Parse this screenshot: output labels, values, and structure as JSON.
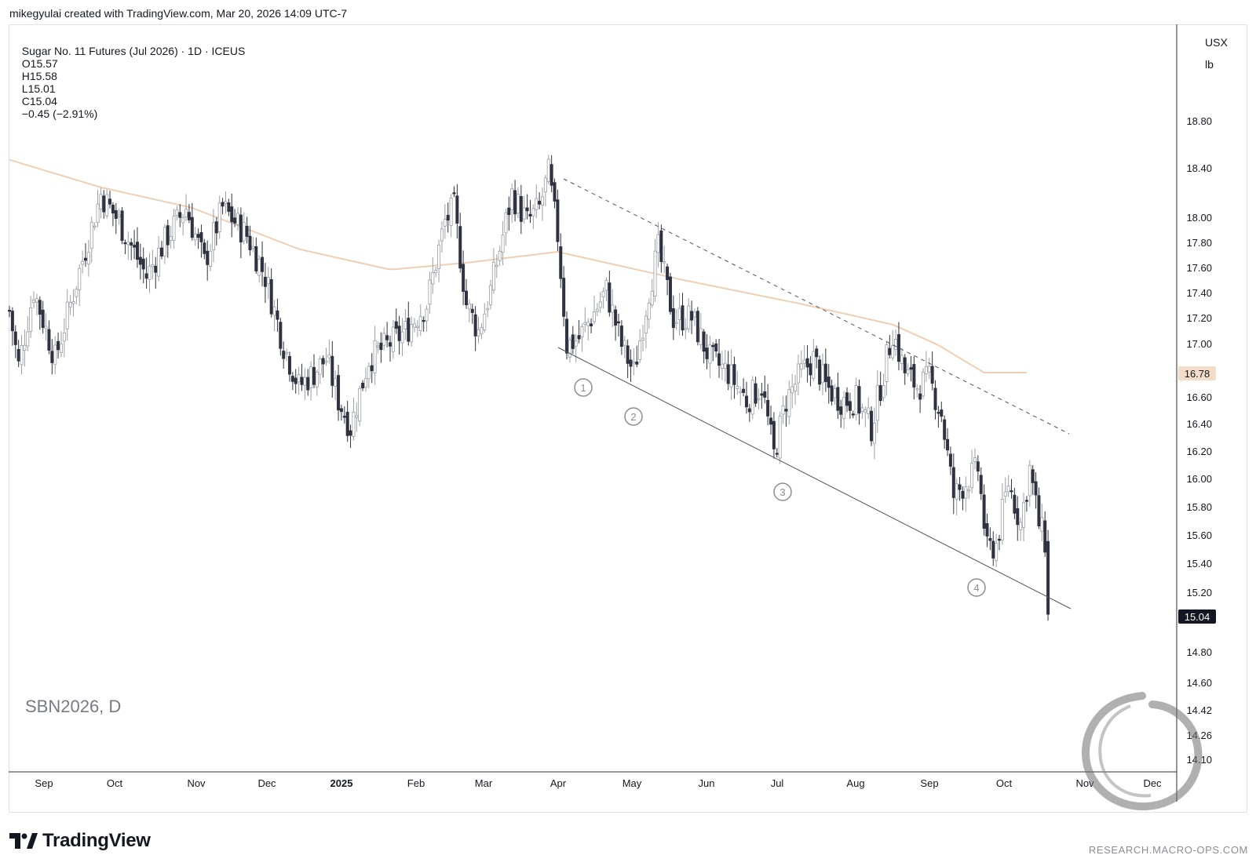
{
  "caption": "mikegyulai created with TradingView.com, Mar 20, 2026 14:09 UTC-7",
  "header": {
    "title": "Sugar No. 11 Futures (Jul 2026) · 1D · ICEUS",
    "open": "O15.57",
    "high": "H15.58",
    "low": "L15.01",
    "close": "C15.04",
    "change": "−0.45 (−2.91%)"
  },
  "units": {
    "currency": "USX",
    "unit": "lb"
  },
  "symbol_watermark": "SBN2026, D",
  "brand": "TradingView",
  "research_url": "RESEARCH.MACRO-OPS.COM",
  "price_badges": {
    "ma_value": "16.78",
    "last_value": "15.04",
    "ma_color": "#f4ddc8",
    "last_color": "#131722"
  },
  "wave_labels": [
    "1",
    "2",
    "3",
    "4"
  ],
  "chart_data": {
    "type": "candlestick",
    "y_ticks": [
      "18.80",
      "18.40",
      "18.00",
      "17.80",
      "17.60",
      "17.40",
      "17.20",
      "17.00",
      "16.60",
      "16.40",
      "16.20",
      "16.00",
      "15.80",
      "15.60",
      "15.40",
      "15.20",
      "14.80",
      "14.60",
      "14.42",
      "14.26",
      "14.10"
    ],
    "x_ticks": [
      "Sep",
      "Oct",
      "Nov",
      "Dec",
      "2025",
      "Feb",
      "Mar",
      "Apr",
      "May",
      "Jun",
      "Jul",
      "Aug",
      "Sep",
      "Oct",
      "Nov",
      "Dec"
    ],
    "price_keypoints": [
      [
        0,
        17.25
      ],
      [
        3,
        16.85
      ],
      [
        8,
        17.4
      ],
      [
        15,
        16.9
      ],
      [
        20,
        17.3
      ],
      [
        25,
        17.7
      ],
      [
        30,
        18.1
      ],
      [
        36,
        17.9
      ],
      [
        45,
        17.5
      ],
      [
        52,
        17.8
      ],
      [
        58,
        18.0
      ],
      [
        64,
        17.6
      ],
      [
        70,
        18.0
      ],
      [
        78,
        17.8
      ],
      [
        84,
        17.5
      ],
      [
        90,
        17.0
      ],
      [
        95,
        16.7
      ],
      [
        100,
        16.8
      ],
      [
        104,
        16.9
      ],
      [
        108,
        16.6
      ],
      [
        112,
        16.4
      ],
      [
        118,
        16.9
      ],
      [
        124,
        17.0
      ],
      [
        130,
        17.1
      ],
      [
        137,
        17.3
      ],
      [
        143,
        17.9
      ],
      [
        146,
        18.0
      ],
      [
        150,
        17.3
      ],
      [
        154,
        17.1
      ],
      [
        158,
        17.4
      ],
      [
        165,
        18.1
      ],
      [
        170,
        17.9
      ],
      [
        174,
        18.0
      ],
      [
        177,
        18.25
      ],
      [
        180,
        17.8
      ],
      [
        183,
        17.0
      ],
      [
        187,
        17.05
      ],
      [
        191,
        17.2
      ],
      [
        196,
        17.4
      ],
      [
        201,
        17.0
      ],
      [
        205,
        16.8
      ],
      [
        210,
        17.4
      ],
      [
        213,
        17.7
      ],
      [
        218,
        17.2
      ],
      [
        224,
        17.2
      ],
      [
        230,
        16.9
      ],
      [
        236,
        16.8
      ],
      [
        242,
        16.6
      ],
      [
        247,
        16.7
      ],
      [
        251,
        16.2
      ],
      [
        255,
        16.6
      ],
      [
        260,
        16.8
      ],
      [
        264,
        16.9
      ],
      [
        268,
        16.7
      ],
      [
        273,
        16.6
      ],
      [
        278,
        16.6
      ],
      [
        283,
        16.4
      ],
      [
        287,
        16.8
      ],
      [
        290,
        17.1
      ],
      [
        294,
        16.8
      ],
      [
        298,
        16.7
      ],
      [
        302,
        16.75
      ],
      [
        306,
        16.5
      ],
      [
        310,
        15.9
      ],
      [
        314,
        16.0
      ],
      [
        318,
        16.1
      ],
      [
        321,
        15.5
      ],
      [
        324,
        15.55
      ],
      [
        328,
        16.0
      ],
      [
        332,
        15.7
      ],
      [
        335,
        16.1
      ],
      [
        338,
        15.7
      ],
      [
        340,
        15.57
      ],
      [
        341,
        15.04
      ]
    ],
    "moving_average": [
      [
        0,
        18.35
      ],
      [
        30,
        18.15
      ],
      [
        60,
        18.0
      ],
      [
        95,
        17.7
      ],
      [
        125,
        17.55
      ],
      [
        150,
        17.6
      ],
      [
        180,
        17.68
      ],
      [
        220,
        17.48
      ],
      [
        260,
        17.3
      ],
      [
        290,
        17.15
      ],
      [
        305,
        17.0
      ],
      [
        320,
        16.8
      ]
    ],
    "support_line": [
      [
        175,
        16.98
      ],
      [
        341,
        15.1
      ]
    ],
    "resistance_line": [
      [
        176,
        18.3
      ],
      [
        341,
        16.4
      ]
    ],
    "last_close": 15.04,
    "ma_last": 16.78
  }
}
